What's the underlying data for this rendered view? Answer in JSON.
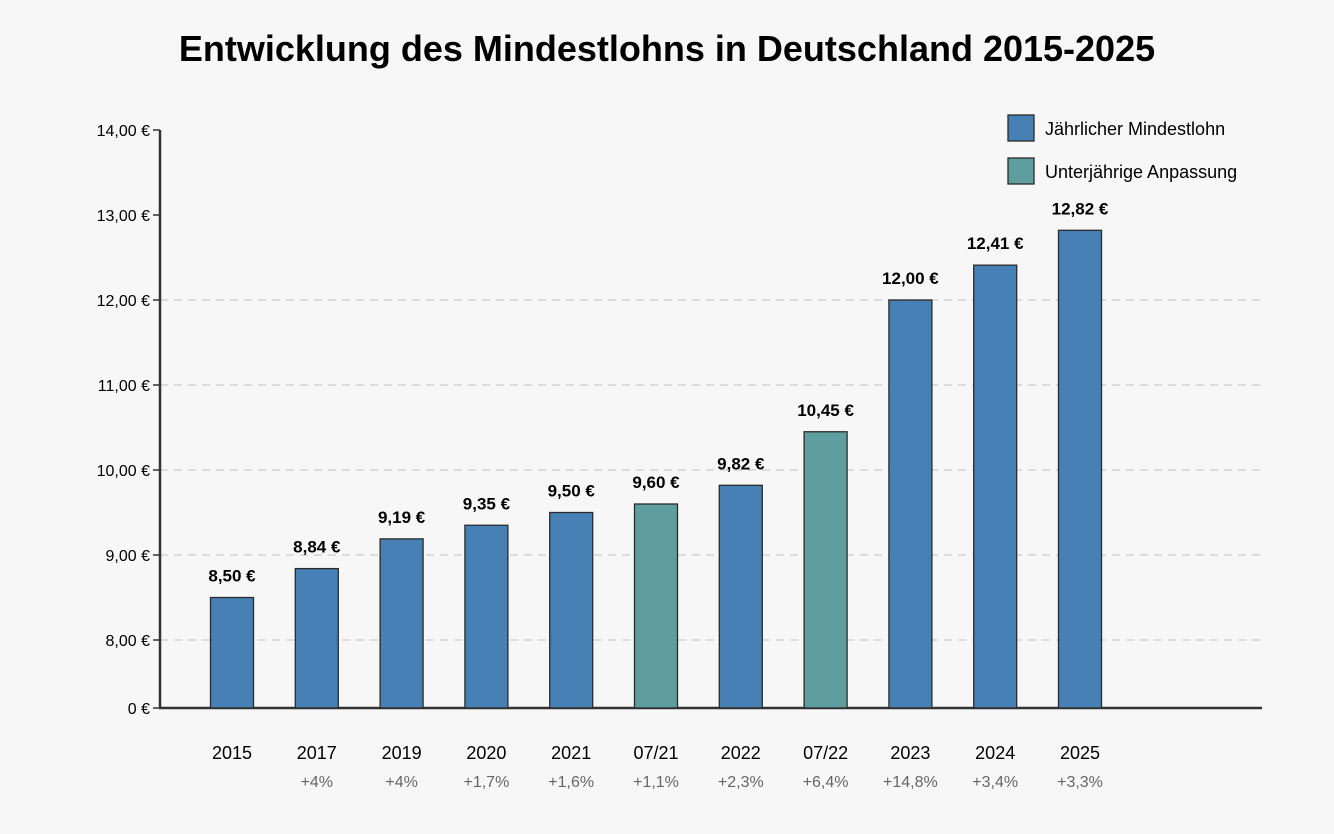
{
  "chart_data": {
    "type": "bar",
    "title": "Entwicklung des Mindestlohns in Deutschland 2015-2025",
    "xlabel": "",
    "ylabel": "",
    "categories": [
      "2015",
      "2017",
      "2019",
      "2020",
      "2021",
      "07/21",
      "2022",
      "07/22",
      "2023",
      "2024",
      "2025"
    ],
    "changes": [
      "",
      "+4%",
      "+4%",
      "+1,7%",
      "+1,6%",
      "+1,1%",
      "+2,3%",
      "+6,4%",
      "+14,8%",
      "+3,4%",
      "+3,3%"
    ],
    "values": [
      8.5,
      8.84,
      9.19,
      9.35,
      9.5,
      9.6,
      9.82,
      10.45,
      12.0,
      12.41,
      12.82
    ],
    "value_labels": [
      "8,50 €",
      "8,84 €",
      "9,19 €",
      "9,35 €",
      "9,50 €",
      "9,60 €",
      "9,82 €",
      "10,45 €",
      "12,00 €",
      "12,41 €",
      "12,82 €"
    ],
    "series_index": [
      0,
      0,
      0,
      0,
      0,
      1,
      0,
      1,
      0,
      0,
      0
    ],
    "series": [
      {
        "name": "Jährlicher Mindestlohn",
        "color": "#4680b4"
      },
      {
        "name": "Unterjährige Anpassung",
        "color": "#5f9e9f"
      }
    ],
    "axis_break": true,
    "yticks": [
      0,
      8,
      9,
      10,
      11,
      12,
      13,
      14
    ],
    "ytick_labels": [
      "0 €",
      "8,00 €",
      "9,00 €",
      "10,00 €",
      "11,00 €",
      "12,00 €",
      "13,00 €",
      "14,00 €"
    ],
    "gridlines_at": [
      8,
      9,
      10,
      11,
      12
    ],
    "ylim": [
      7.15,
      14
    ],
    "legend_position": "top-right"
  }
}
